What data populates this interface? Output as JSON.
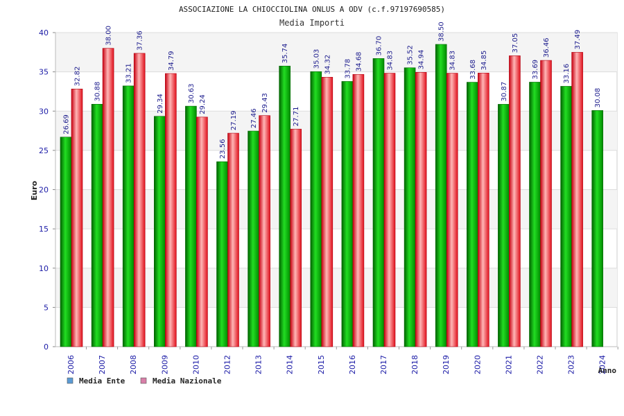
{
  "chart_data": {
    "type": "bar",
    "title": "ASSOCIAZIONE LA CHIOCCIOLINA ONLUS A ODV (c.f.97197690585)",
    "subtitle": "Media Importi",
    "ylabel": "Euro",
    "xlabel": "Anno",
    "ylim": [
      0,
      40
    ],
    "yticks": [
      0,
      5,
      10,
      15,
      20,
      25,
      30,
      35,
      40
    ],
    "grid": true,
    "legend_position": "bottom-left",
    "categories": [
      "2006",
      "2007",
      "2008",
      "2009",
      "2010",
      "2012",
      "2013",
      "2014",
      "2015",
      "2016",
      "2017",
      "2018",
      "2019",
      "2020",
      "2021",
      "2022",
      "2023",
      "2024"
    ],
    "series": [
      {
        "name": "Media Ente",
        "legend_color": "#5b9bd5",
        "color": "#0a9a0a",
        "values": [
          26.69,
          30.88,
          33.21,
          29.34,
          30.63,
          23.56,
          27.46,
          35.74,
          35.03,
          33.78,
          36.7,
          35.52,
          38.5,
          33.68,
          30.87,
          33.69,
          33.16,
          30.08
        ]
      },
      {
        "name": "Media Nazionale",
        "legend_color": "#d87fa8",
        "color": "#e01b24",
        "values": [
          32.82,
          38.0,
          37.36,
          34.79,
          29.24,
          27.19,
          29.43,
          27.71,
          34.32,
          34.68,
          34.83,
          34.94,
          34.83,
          34.85,
          37.05,
          36.46,
          37.49,
          null
        ]
      }
    ]
  }
}
